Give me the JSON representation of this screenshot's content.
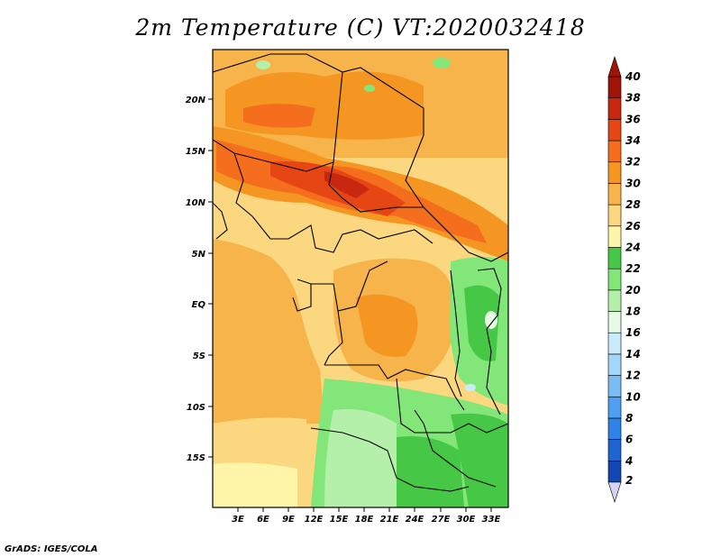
{
  "title": "2m Temperature (C) VT:2020032418",
  "credit": "GrADS: IGES/COLA",
  "map": {
    "lat_labels": [
      "20N",
      "15N",
      "10N",
      "5N",
      "EQ",
      "5S",
      "10S",
      "15S"
    ],
    "lon_labels": [
      "3E",
      "6E",
      "9E",
      "12E",
      "15E",
      "18E",
      "21E",
      "24E",
      "27E",
      "30E",
      "33E"
    ]
  },
  "colorbar": {
    "levels": [
      "2",
      "4",
      "6",
      "8",
      "10",
      "12",
      "14",
      "16",
      "18",
      "20",
      "22",
      "24",
      "26",
      "28",
      "30",
      "32",
      "34",
      "36",
      "38",
      "40"
    ],
    "colors": [
      "#1a1a8c",
      "#1247b4",
      "#1e64d2",
      "#2f82e6",
      "#4fa0f0",
      "#78bef5",
      "#a2d6fa",
      "#c8ecfc",
      "#e6fae6",
      "#b4f0aa",
      "#82e678",
      "#46c846",
      "#fff5a8",
      "#fbd780",
      "#f7b44b",
      "#f59623",
      "#f56e1e",
      "#e64614",
      "#c8280f",
      "#a01408"
    ]
  }
}
